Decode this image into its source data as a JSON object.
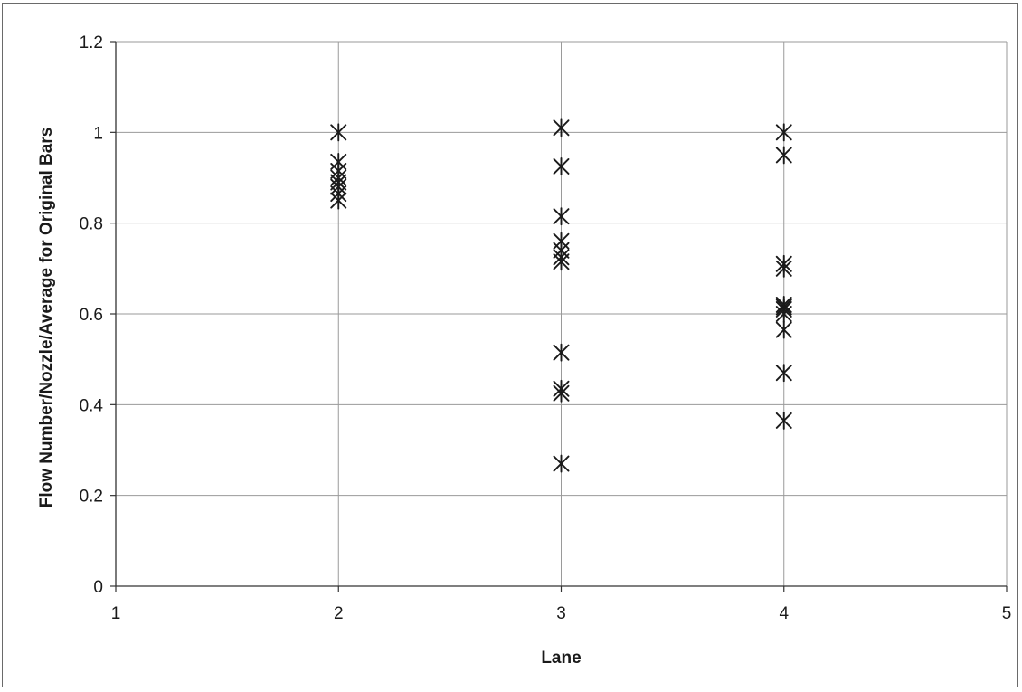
{
  "chart_data": {
    "type": "scatter",
    "title": "",
    "xlabel": "Lane",
    "ylabel": "Flow Number/Nozzle/Average for Original Bars",
    "xlim": [
      1,
      5
    ],
    "ylim": [
      0,
      1.2
    ],
    "x_ticks": [
      1,
      2,
      3,
      4,
      5
    ],
    "x_tick_labels": [
      "1",
      "2",
      "3",
      "4",
      "5"
    ],
    "y_ticks": [
      0,
      0.2,
      0.4,
      0.6,
      0.8,
      1.0,
      1.2
    ],
    "y_tick_labels": [
      "0",
      "0.2",
      "0.4",
      "0.6",
      "0.8",
      "1",
      "1.2"
    ],
    "grid": true,
    "marker": "asterisk",
    "marker_color": "#1a1a1a",
    "series": [
      {
        "points": [
          {
            "x": 2,
            "y": 1.0
          },
          {
            "x": 2,
            "y": 0.935
          },
          {
            "x": 2,
            "y": 0.915
          },
          {
            "x": 2,
            "y": 0.9
          },
          {
            "x": 2,
            "y": 0.89
          },
          {
            "x": 2,
            "y": 0.88
          },
          {
            "x": 2,
            "y": 0.865
          },
          {
            "x": 2,
            "y": 0.85
          },
          {
            "x": 3,
            "y": 1.01
          },
          {
            "x": 3,
            "y": 0.925
          },
          {
            "x": 3,
            "y": 0.815
          },
          {
            "x": 3,
            "y": 0.76
          },
          {
            "x": 3,
            "y": 0.74
          },
          {
            "x": 3,
            "y": 0.725
          },
          {
            "x": 3,
            "y": 0.715
          },
          {
            "x": 3,
            "y": 0.515
          },
          {
            "x": 3,
            "y": 0.435
          },
          {
            "x": 3,
            "y": 0.425
          },
          {
            "x": 3,
            "y": 0.27
          },
          {
            "x": 4,
            "y": 1.0
          },
          {
            "x": 4,
            "y": 0.95
          },
          {
            "x": 4,
            "y": 0.71
          },
          {
            "x": 4,
            "y": 0.7
          },
          {
            "x": 4,
            "y": 0.62
          },
          {
            "x": 4,
            "y": 0.615
          },
          {
            "x": 4,
            "y": 0.61
          },
          {
            "x": 4,
            "y": 0.6
          },
          {
            "x": 4,
            "y": 0.565
          },
          {
            "x": 4,
            "y": 0.47
          },
          {
            "x": 4,
            "y": 0.365
          }
        ]
      }
    ]
  }
}
